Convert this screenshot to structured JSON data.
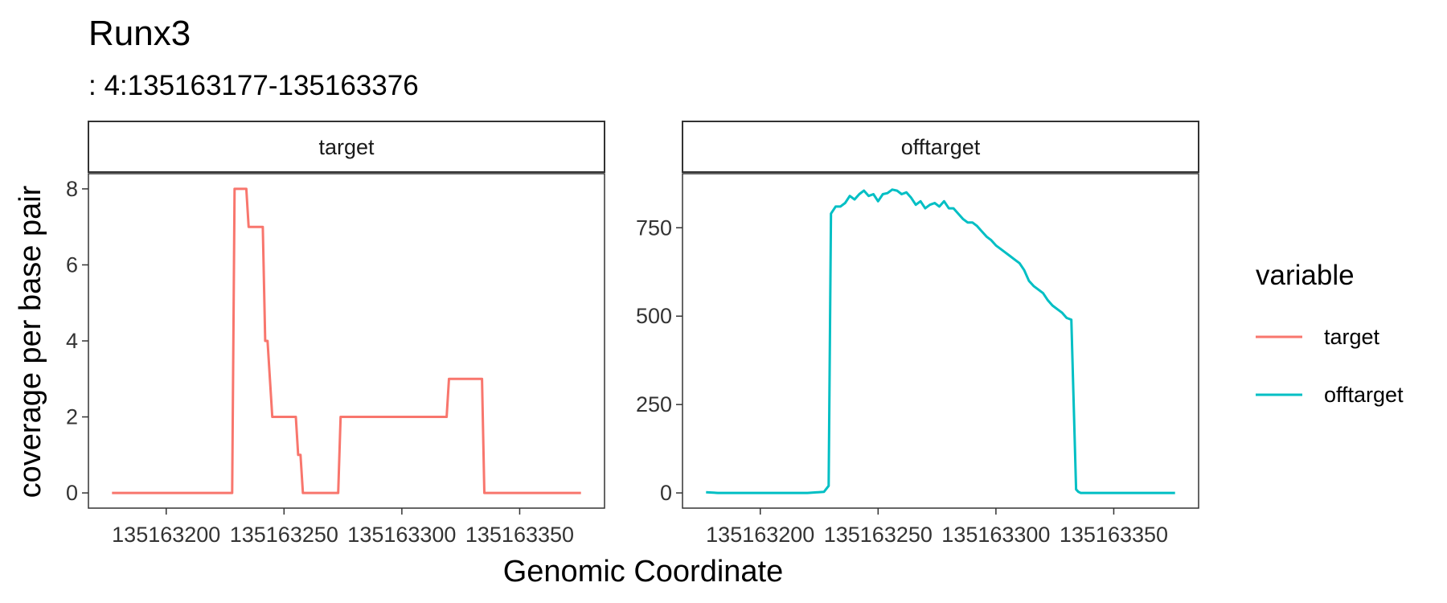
{
  "chart_data": {
    "type": "line",
    "title": "Runx3",
    "subtitle": ": 4:135163177-135163376",
    "xlabel": "Genomic Coordinate",
    "ylabel": "coverage per base pair",
    "x_ticks": [
      135163200,
      135163250,
      135163300,
      135163350
    ],
    "x_tick_labels": [
      "135163200",
      "135163250",
      "135163300",
      "135163350"
    ],
    "xlim": [
      135163167,
      135163386
    ],
    "legend": {
      "title": "variable",
      "position": "right",
      "entries": [
        {
          "label": "target",
          "color": "#F8766D"
        },
        {
          "label": "offtarget",
          "color": "#00BFC4"
        }
      ]
    },
    "panels": [
      {
        "strip": "target",
        "color": "#F8766D",
        "ylim": [
          -0.4,
          8.4
        ],
        "y_ticks": [
          0,
          2,
          4,
          6,
          8
        ],
        "y_tick_labels": [
          "0",
          "2",
          "4",
          "6",
          "8"
        ],
        "series": {
          "name": "target",
          "x": [
            135163177,
            135163228,
            135163229,
            135163234,
            135163235,
            135163241,
            135163242,
            135163243,
            135163245,
            135163245,
            135163255,
            135163256,
            135163257,
            135163258,
            135163273,
            135163274,
            135163319,
            135163320,
            135163334,
            135163335,
            135163376
          ],
          "y": [
            0,
            0,
            8,
            8,
            7,
            7,
            4,
            4,
            2,
            2,
            2,
            1,
            1,
            0,
            0,
            2,
            2,
            3,
            3,
            0,
            0
          ]
        }
      },
      {
        "strip": "offtarget",
        "color": "#00BFC4",
        "ylim": [
          -43,
          903
        ],
        "y_ticks": [
          0,
          250,
          500,
          750
        ],
        "y_tick_labels": [
          "0",
          "250",
          "500",
          "750"
        ],
        "series": {
          "name": "offtarget",
          "x": [
            135163177,
            135163182,
            135163200,
            135163220,
            135163227,
            135163229,
            135163230,
            135163232,
            135163234,
            135163236,
            135163238,
            135163240,
            135163242,
            135163244,
            135163246,
            135163248,
            135163250,
            135163252,
            135163254,
            135163256,
            135163258,
            135163260,
            135163262,
            135163264,
            135163266,
            135163268,
            135163270,
            135163272,
            135163274,
            135163276,
            135163278,
            135163280,
            135163282,
            135163284,
            135163286,
            135163288,
            135163290,
            135163292,
            135163294,
            135163296,
            135163298,
            135163300,
            135163302,
            135163304,
            135163306,
            135163308,
            135163310,
            135163312,
            135163314,
            135163316,
            135163318,
            135163320,
            135163322,
            135163324,
            135163326,
            135163328,
            135163330,
            135163332,
            135163334,
            135163335,
            135163336,
            135163345,
            135163360,
            135163376
          ],
          "y": [
            2,
            0,
            0,
            0,
            3,
            20,
            790,
            810,
            810,
            820,
            840,
            830,
            845,
            855,
            840,
            845,
            825,
            845,
            848,
            858,
            855,
            845,
            850,
            835,
            815,
            825,
            805,
            815,
            820,
            810,
            825,
            805,
            805,
            790,
            775,
            765,
            765,
            755,
            740,
            725,
            715,
            700,
            690,
            680,
            670,
            660,
            650,
            630,
            600,
            585,
            575,
            565,
            545,
            530,
            520,
            510,
            495,
            490,
            10,
            3,
            0,
            0,
            0,
            0
          ]
        }
      }
    ]
  }
}
